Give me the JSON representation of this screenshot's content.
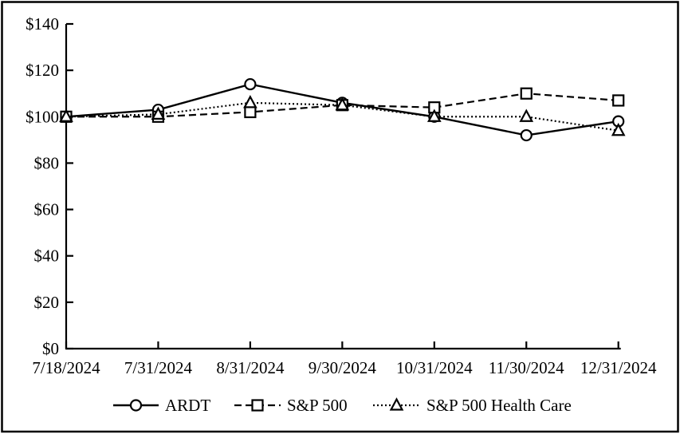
{
  "chart_data": {
    "type": "line",
    "title": "",
    "xlabel": "",
    "ylabel": "",
    "categories": [
      "7/18/2024",
      "7/31/2024",
      "8/31/2024",
      "9/30/2024",
      "10/31/2024",
      "11/30/2024",
      "12/31/2024"
    ],
    "series": [
      {
        "name": "ARDT",
        "line_style": "solid",
        "marker": "circle",
        "values": [
          100,
          103,
          114,
          106,
          100,
          92,
          98
        ]
      },
      {
        "name": "S&P 500",
        "line_style": "dashed",
        "marker": "square",
        "values": [
          100,
          100,
          102,
          105,
          104,
          110,
          107
        ]
      },
      {
        "name": "S&P 500 Health Care",
        "line_style": "dotted",
        "marker": "triangle",
        "values": [
          100,
          101,
          106,
          105,
          100,
          100,
          94
        ]
      }
    ],
    "y_axis": {
      "min": 0,
      "max": 140,
      "step": 20,
      "tick_labels": [
        "$0",
        "$20",
        "$40",
        "$60",
        "$80",
        "$100",
        "$120",
        "$140"
      ]
    },
    "x_axis": {
      "tick_labels": [
        "7/18/2024",
        "7/31/2024",
        "8/31/2024",
        "9/30/2024",
        "10/31/2024",
        "11/30/2024",
        "12/31/2024"
      ]
    },
    "legend_position": "bottom",
    "grid": false,
    "colors": {
      "line": "#000000",
      "marker_fill": "#ffffff",
      "background": "#ffffff",
      "frame_border": "#000000"
    }
  }
}
